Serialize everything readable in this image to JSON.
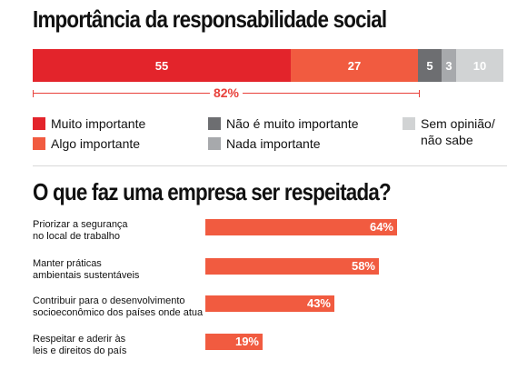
{
  "title1": "Importância da responsabilidade social",
  "title2": "O que faz uma empresa ser respeitada?",
  "colors": {
    "muito_importante": "#e3242b",
    "algo_importante": "#f15b40",
    "nao_muito_importante": "#6d6e71",
    "nada_importante": "#a7a9ac",
    "sem_opiniao": "#d1d3d4",
    "accent_text": "#e8413b"
  },
  "bracket_label": "82%",
  "chart_data": [
    {
      "type": "bar",
      "title": "Importância da responsabilidade social",
      "orientation": "horizontal-stacked",
      "series": [
        {
          "name": "Muito importante",
          "value": 55,
          "color": "#e3242b"
        },
        {
          "name": "Algo importante",
          "value": 27,
          "color": "#f15b40"
        },
        {
          "name": "Não é muito importante",
          "value": 5,
          "color": "#6d6e71"
        },
        {
          "name": "Nada importante",
          "value": 3,
          "color": "#a7a9ac"
        },
        {
          "name": "Sem opinião/\nnão sabe",
          "value": 10,
          "color": "#d1d3d4"
        }
      ],
      "legend": "bottom"
    },
    {
      "type": "bar",
      "title": "O que faz uma empresa ser respeitada?",
      "orientation": "horizontal",
      "categories": [
        "Priorizar a segurança\nno local de trabalho",
        "Manter práticas\nambientais sustentáveis",
        "Contribuir para o desenvolvimento\nsocioeconômico dos países onde atua",
        "Respeitar e aderir às\nleis e direitos do país"
      ],
      "values": [
        64,
        58,
        43,
        19
      ],
      "value_labels": [
        "64%",
        "58%",
        "43%",
        "19%"
      ],
      "xlim": [
        0,
        100
      ],
      "color": "#f15b40"
    }
  ]
}
